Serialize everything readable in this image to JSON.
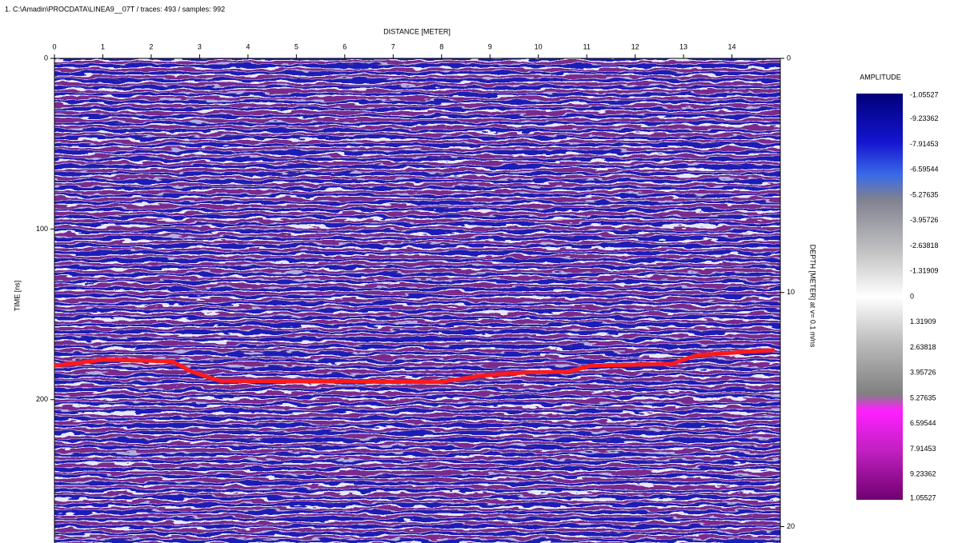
{
  "header": "1. C:\\Amadin\\PROCDATA\\LINEA9__07T / traces: 493 / samples: 992",
  "chart_data": {
    "type": "radargram",
    "x_label": "DISTANCE [METER]",
    "y_label": "TIME [ns]",
    "y2_label": "DEPTH [METER] at v= 0.1 m/ns",
    "xlim": [
      0,
      15
    ],
    "xticks": [
      0,
      1,
      2,
      3,
      4,
      5,
      6,
      7,
      8,
      9,
      10,
      11,
      12,
      13,
      14
    ],
    "ylim": [
      0,
      284
    ],
    "yticks": [
      0,
      100,
      200
    ],
    "y2lim": [
      0,
      20.7
    ],
    "y2ticks": [
      0,
      10,
      20
    ],
    "horizon": {
      "color": "#ff1a1a",
      "x": [
        0,
        1.02,
        2.43,
        2.84,
        3.42,
        7.97,
        8.79,
        9.79,
        10.61,
        11.11,
        12.76,
        13.26,
        14.25,
        14.88
      ],
      "y": [
        180,
        176.6,
        177.5,
        183.6,
        189,
        189.7,
        186,
        184,
        183.6,
        180,
        179,
        174,
        172,
        171
      ]
    },
    "colorbar": {
      "title": "AMPLITUDE",
      "labels": [
        "-1.05527",
        "-9.23362",
        "-7.91453",
        "-6.59544",
        "-5.27635",
        "-3.95726",
        "-2.63818",
        "-1.31909",
        "0",
        "1.31909",
        "2.63818",
        "3.95726",
        "5.27635",
        "6.59544",
        "7.91453",
        "9.23362",
        "1.05527"
      ]
    }
  }
}
